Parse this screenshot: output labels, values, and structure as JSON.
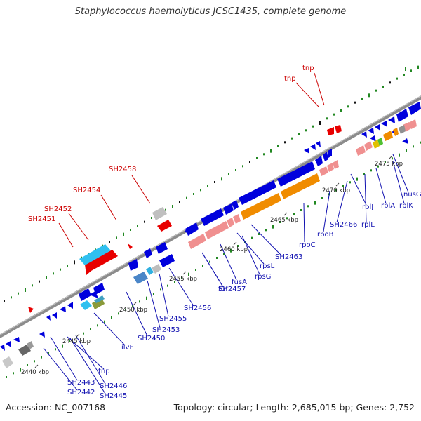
{
  "title": "Staphylococcus haemolyticus JCSC1435, complete genome",
  "footer": {
    "accession": "Accession: NC_007168",
    "topology": "Topology: circular; Length: 2,685,015 bp; Genes: 2,752"
  },
  "colors": {
    "backbone": "#8c8c8c",
    "forward_cds": "#0000dd",
    "rrna_like": "#f09090",
    "rpoBC": "#f08c00",
    "tRNA_like": "#30b0e0",
    "red_feature": "#e80000",
    "grey_feature": "#c0c0c0",
    "gc_dots": "#228822",
    "label_blue": "#1010b0",
    "label_red": "#cc0000"
  },
  "scale_ticks": [
    "2440 kbp",
    "2445 kbp",
    "2450 kbp",
    "2455 kbp",
    "2460 kbp",
    "2465 kbp",
    "2470 kbp",
    "2475 kbp"
  ],
  "gene_labels_blue": [
    "SH2442",
    "SH2443",
    "SH2445",
    "SH2446",
    "tnp",
    "ilvE",
    "SH2450",
    "SH2453",
    "SH2455",
    "SH2456",
    "SH2457",
    "tuf",
    "fusA",
    "rpsG",
    "rpsL",
    "SH2463",
    "rpoC",
    "rpoB",
    "SH2466",
    "rplL",
    "rplJ",
    "rplA",
    "rplK",
    "nusG"
  ],
  "gene_labels_red": [
    "SH2451",
    "SH2452",
    "SH2454",
    "SH2458",
    "tnp",
    "tnp"
  ]
}
